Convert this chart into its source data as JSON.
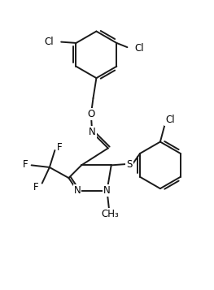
{
  "background_color": "#ffffff",
  "line_color": "#1a1a1a",
  "line_width": 1.4,
  "font_size": 8.5,
  "figsize": [
    2.63,
    3.57
  ],
  "dpi": 100,
  "xlim": [
    0,
    10
  ],
  "ylim": [
    0,
    13.5
  ]
}
